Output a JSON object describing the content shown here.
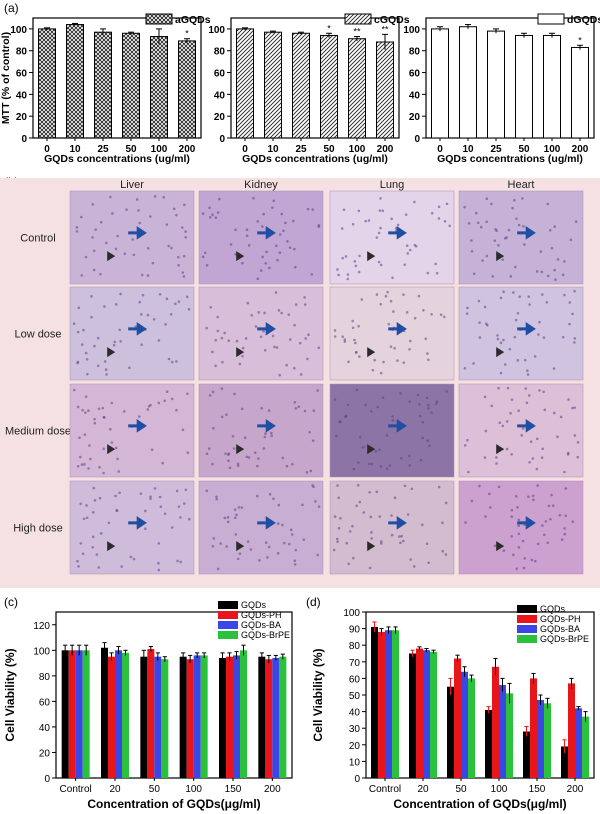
{
  "panel_labels": [
    "(a)",
    "(b)",
    "(c)",
    "(d)"
  ],
  "histology": {
    "columns": [
      "Liver",
      "Kidney",
      "Lung",
      "Heart"
    ],
    "rows": [
      "Control",
      "Low dose",
      "Medium dose",
      "High dose"
    ]
  },
  "colors": {
    "GQDs": "#000000",
    "GQDs-PH": "#e8151b",
    "GQDs-BA": "#3a47e6",
    "GQDs-BrPE": "#29c23a"
  },
  "chart_data": [
    {
      "type": "bar",
      "categories": [
        "0",
        "10",
        "25",
        "50",
        "100",
        "200"
      ],
      "series": [
        {
          "name": "aGQDs",
          "values": [
            100,
            104,
            97,
            96,
            93,
            89
          ],
          "errors": [
            1,
            1,
            3,
            1,
            7,
            2
          ],
          "fill": "crosshatch"
        }
      ],
      "annotations": [
        "",
        "",
        "",
        "",
        "*",
        "*"
      ],
      "ylabel": "MTT (% of control)",
      "xlabel": "GQDs concentrations (ug/ml)",
      "yticks": [
        0,
        20,
        40,
        60,
        80,
        100
      ],
      "ylim": [
        0,
        110
      ],
      "legend": "top-right"
    },
    {
      "type": "bar",
      "categories": [
        "0",
        "10",
        "25",
        "50",
        "100",
        "200"
      ],
      "series": [
        {
          "name": "cGQDs",
          "values": [
            100,
            97,
            96,
            94,
            91,
            88
          ],
          "errors": [
            1,
            1,
            1,
            2,
            2,
            7
          ],
          "fill": "diagonal"
        }
      ],
      "annotations": [
        "",
        "",
        "",
        "*",
        "**",
        "**"
      ],
      "ylabel": "",
      "xlabel": "GQDs concentrations (ug/ml)",
      "yticks": [
        0,
        20,
        40,
        60,
        80,
        100
      ],
      "ylim": [
        0,
        110
      ],
      "legend": "top-right"
    },
    {
      "type": "bar",
      "categories": [
        "0",
        "10",
        "25",
        "50",
        "100",
        "200"
      ],
      "series": [
        {
          "name": "dGQDs",
          "values": [
            100,
            102,
            98,
            94,
            94,
            83
          ],
          "errors": [
            2,
            2,
            2,
            2,
            2,
            2
          ],
          "fill": "white"
        }
      ],
      "annotations": [
        "",
        "",
        "",
        "",
        "",
        "*"
      ],
      "ylabel": "",
      "xlabel": "GQDs concentrations (ug/ml)",
      "yticks": [
        0,
        20,
        40,
        60,
        80,
        100
      ],
      "ylim": [
        0,
        110
      ],
      "legend": "top-right"
    },
    {
      "type": "bar",
      "categories": [
        "Control",
        "20",
        "50",
        "100",
        "150",
        "200"
      ],
      "series": [
        {
          "name": "GQDs",
          "values": [
            100,
            102,
            95,
            95,
            94,
            95
          ],
          "errors": [
            4,
            4,
            5,
            3,
            4,
            3
          ]
        },
        {
          "name": "GQDs-PH",
          "values": [
            100,
            95,
            101,
            93,
            95,
            93
          ],
          "errors": [
            4,
            3,
            2,
            3,
            3,
            3
          ]
        },
        {
          "name": "GQDs-BA",
          "values": [
            100,
            100,
            95,
            96,
            96,
            94
          ],
          "errors": [
            4,
            3,
            3,
            2,
            3,
            2
          ]
        },
        {
          "name": "GQDs-BrPE",
          "values": [
            100,
            98,
            93,
            96,
            100,
            95
          ],
          "errors": [
            4,
            2,
            2,
            2,
            4,
            2
          ]
        }
      ],
      "ylabel": "Cell Viability (%)",
      "xlabel": "Concentration of GQDs(μg/ml)",
      "yticks": [
        0,
        20,
        40,
        60,
        80,
        100,
        120
      ],
      "ylim": [
        0,
        130
      ],
      "legend": "top-right"
    },
    {
      "type": "bar",
      "categories": [
        "Control",
        "20",
        "50",
        "100",
        "150",
        "200"
      ],
      "series": [
        {
          "name": "GQDs",
          "values": [
            91,
            75,
            55,
            41,
            28,
            19
          ],
          "errors": [
            3,
            2,
            5,
            2,
            3,
            4
          ]
        },
        {
          "name": "GQDs-PH",
          "values": [
            88,
            78,
            72,
            67,
            60,
            57
          ],
          "errors": [
            2,
            1,
            2,
            5,
            3,
            3
          ]
        },
        {
          "name": "GQDs-BA",
          "values": [
            89,
            77,
            64,
            56,
            47,
            42
          ],
          "errors": [
            2,
            1,
            3,
            4,
            3,
            1
          ]
        },
        {
          "name": "GQDs-BrPE",
          "values": [
            89,
            76,
            60,
            51,
            45,
            37
          ],
          "errors": [
            2,
            1,
            2,
            6,
            3,
            3
          ]
        }
      ],
      "ylabel": "Cell Viability (%)",
      "xlabel": "Concentration of GQDs(μg/ml)",
      "yticks": [
        0,
        10,
        20,
        30,
        40,
        50,
        60,
        70,
        80,
        90,
        100
      ],
      "ylim": [
        0,
        100
      ],
      "legend": "top-right"
    }
  ]
}
